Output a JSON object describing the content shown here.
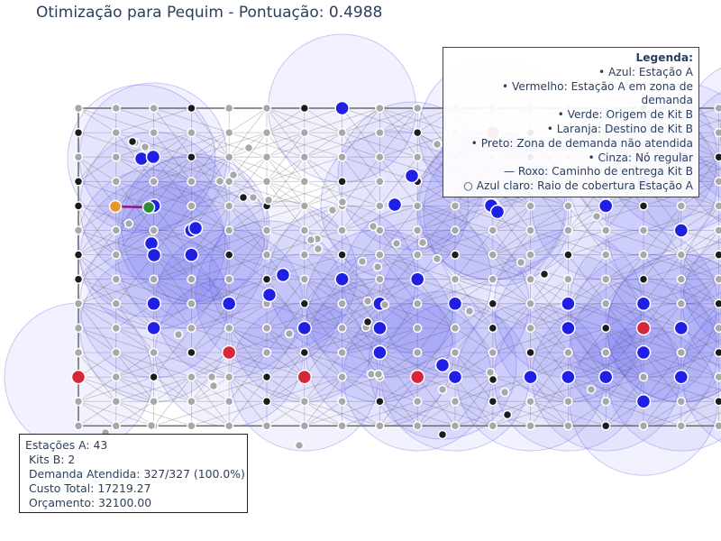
{
  "title": "Otimização para Pequim - Pontuação: 0.4988",
  "legend": {
    "title": "Legenda:",
    "items": [
      "• Azul: Estação A",
      "• Vermelho: Estação A em zona de demanda",
      "• Verde: Origem de Kit B",
      "• Laranja: Destino de Kit B",
      "• Preto: Zona de demanda não atendida",
      "• Cinza: Nó regular",
      "— Roxo: Caminho de entrega Kit B",
      "○ Azul claro: Raio de cobertura Estação A"
    ]
  },
  "stats": {
    "stations": "Estações A: 43",
    "kits": " Kits B: 2",
    "demand": " Demanda Atendida: 327/327 (100.0%)",
    "cost": " Custo Total: 17219.27",
    "budget": " Orçamento: 32100.00"
  },
  "colors": {
    "station": "#1f1fe6",
    "station_in_demand": "#d62738",
    "kit_origin": "#2e8b3a",
    "kit_destination": "#e8962a",
    "unserved_demand": "#1c1c1c",
    "regular_node": "#a8a8a8",
    "kit_path": "#8b1a8b",
    "coverage": "#4848f0"
  },
  "chart_data": {
    "type": "scatter",
    "grid": {
      "cols": 22,
      "rows": 14
    },
    "grid_stations": [
      [
        8,
        1
      ],
      [
        19,
        2
      ],
      [
        17,
        3
      ],
      [
        19,
        3
      ],
      [
        16,
        4
      ],
      [
        3,
        5
      ],
      [
        12,
        5
      ],
      [
        15,
        5
      ],
      [
        4,
        6
      ],
      [
        17,
        6
      ],
      [
        4,
        7
      ],
      [
        8,
        8
      ],
      [
        19,
        8
      ],
      [
        3,
        9
      ],
      [
        5,
        9
      ],
      [
        9,
        9
      ],
      [
        11,
        9
      ],
      [
        14,
        9
      ],
      [
        16,
        9
      ],
      [
        19,
        9
      ],
      [
        17,
        10
      ],
      [
        3,
        10
      ],
      [
        7,
        10
      ],
      [
        9,
        10
      ],
      [
        14,
        10
      ],
      [
        17,
        10
      ],
      [
        9,
        11
      ],
      [
        16,
        11
      ],
      [
        14,
        12
      ],
      [
        19,
        12
      ],
      [
        15,
        12
      ],
      [
        13,
        12
      ],
      [
        11,
        12
      ],
      [
        16,
        13
      ],
      [
        17,
        12
      ],
      [
        10,
        8
      ]
    ],
    "grid_red": [
      [
        12,
        2
      ],
      [
        16,
        3
      ],
      [
        20,
        2
      ],
      [
        5,
        11
      ],
      [
        1,
        12
      ],
      [
        7,
        12
      ],
      [
        10,
        12
      ],
      [
        16,
        10
      ],
      [
        20,
        9
      ]
    ],
    "grid_black": [
      [
        1,
        2
      ],
      [
        4,
        1
      ],
      [
        7,
        1
      ],
      [
        10,
        2
      ],
      [
        13,
        2
      ],
      [
        16,
        1
      ],
      [
        19,
        1
      ],
      [
        21,
        1
      ],
      [
        1,
        4
      ],
      [
        4,
        3
      ],
      [
        10,
        4
      ],
      [
        13,
        3
      ],
      [
        18,
        3
      ],
      [
        20,
        3
      ],
      [
        1,
        5
      ],
      [
        8,
        4
      ],
      [
        6,
        5
      ],
      [
        16,
        5
      ],
      [
        20,
        4
      ],
      [
        1,
        7
      ],
      [
        5,
        7
      ],
      [
        8,
        7
      ],
      [
        11,
        7
      ],
      [
        14,
        7
      ],
      [
        18,
        7
      ],
      [
        21,
        7
      ],
      [
        1,
        8
      ],
      [
        6,
        8
      ],
      [
        10,
        8
      ],
      [
        16,
        8
      ],
      [
        20,
        8
      ],
      [
        7,
        9
      ],
      [
        12,
        9
      ],
      [
        18,
        9
      ],
      [
        21,
        9
      ],
      [
        9,
        10
      ],
      [
        12,
        10
      ],
      [
        15,
        10
      ],
      [
        20,
        10
      ],
      [
        4,
        11
      ],
      [
        7,
        11
      ],
      [
        13,
        11
      ],
      [
        18,
        11
      ],
      [
        21,
        12
      ],
      [
        3,
        12
      ],
      [
        6,
        12
      ],
      [
        12,
        13
      ],
      [
        18,
        13
      ],
      [
        21,
        13
      ],
      [
        6,
        13
      ],
      [
        9,
        13
      ],
      [
        15,
        14
      ],
      [
        19,
        14
      ]
    ],
    "off_grid_stations": [
      [
        157,
        176
      ],
      [
        170,
        174
      ],
      [
        217,
        253
      ],
      [
        168,
        270
      ],
      [
        171,
        283
      ],
      [
        314,
        305
      ],
      [
        299,
        327
      ],
      [
        457,
        195
      ],
      [
        438,
        227
      ],
      [
        545,
        228
      ],
      [
        552,
        235
      ],
      [
        491,
        405
      ]
    ],
    "off_grid_black": [
      [
        270,
        219
      ],
      [
        604,
        304
      ],
      [
        408,
        357
      ],
      [
        547,
        421
      ],
      [
        563,
        460
      ],
      [
        491,
        482
      ],
      [
        147,
        157
      ]
    ],
    "off_grid_gray": [
      [
        150,
        158
      ],
      [
        161,
        163
      ],
      [
        276,
        164
      ],
      [
        244,
        201
      ],
      [
        259,
        194
      ],
      [
        281,
        219
      ],
      [
        298,
        222
      ],
      [
        352,
        265
      ],
      [
        345,
        266
      ],
      [
        380,
        224
      ],
      [
        369,
        233
      ],
      [
        414,
        251
      ],
      [
        440,
        270
      ],
      [
        469,
        269
      ],
      [
        485,
        287
      ],
      [
        353,
        276
      ],
      [
        402,
        290
      ],
      [
        419,
        296
      ],
      [
        427,
        338
      ],
      [
        408,
        334
      ],
      [
        412,
        415
      ],
      [
        420,
        415
      ],
      [
        485,
        160
      ],
      [
        521,
        345
      ],
      [
        578,
        291
      ],
      [
        237,
        428
      ],
      [
        321,
        370
      ],
      [
        544,
        413
      ],
      [
        560,
        435
      ],
      [
        491,
        432
      ],
      [
        656,
        432
      ],
      [
        662,
        240
      ],
      [
        198,
        371
      ],
      [
        143,
        248
      ],
      [
        235,
        418
      ],
      [
        168,
        472
      ],
      [
        117,
        480
      ],
      [
        406,
        363
      ],
      [
        332,
        494
      ]
    ],
    "kit_origin": [
      165,
      230
    ],
    "kit_destination": [
      128,
      229
    ],
    "coverage_radius": 82,
    "stations_total": 43,
    "kits_total": 2,
    "demand_served": 327,
    "demand_total": 327,
    "total_cost": 17219.27,
    "budget": 32100.0
  }
}
